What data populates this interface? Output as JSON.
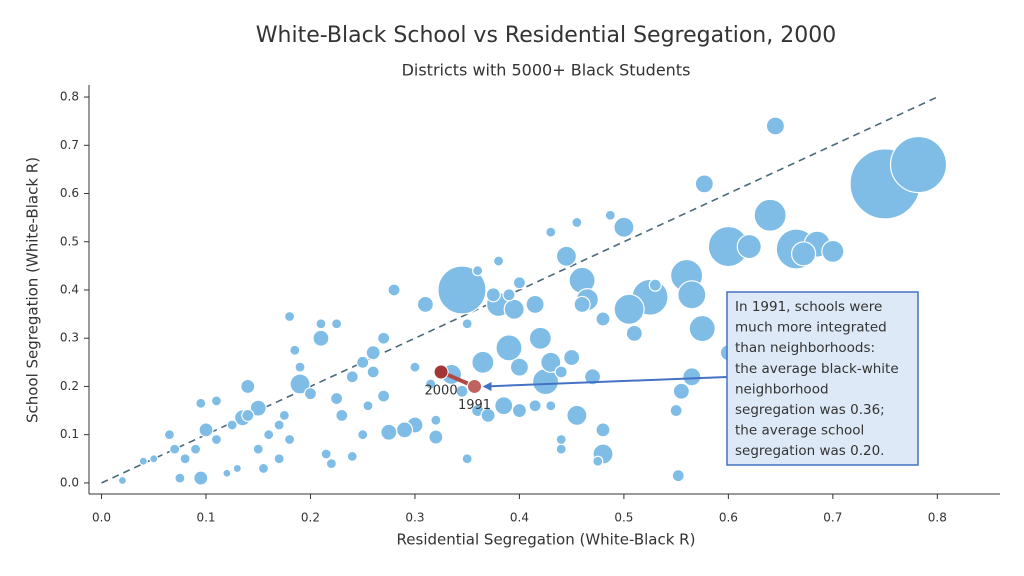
{
  "chart_data": {
    "type": "bubble",
    "title": "White-Black School vs Residential Segregation, 2000",
    "subtitle": "Districts with 5000+ Black Students",
    "x_label": "Residential Segregation (White-Black R)",
    "y_label": "School Segregation (White-Black R)",
    "xlim": [
      -0.012,
      0.86
    ],
    "ylim": [
      -0.023,
      0.825
    ],
    "xticks": [
      {
        "value": 0,
        "label": "0.0"
      },
      0.1,
      0.2,
      0.3,
      0.4,
      0.5,
      0.6,
      0.7,
      0.8
    ],
    "yticks": [
      {
        "value": 0,
        "label": "0.0"
      },
      0.1,
      0.2,
      0.3,
      0.4,
      0.5,
      0.6,
      0.7,
      0.8
    ],
    "color": "#7fbde6",
    "x": [
      0.75,
      0.782,
      0.345,
      0.6,
      0.665,
      0.525,
      0.64,
      0.56,
      0.565,
      0.505,
      0.685,
      0.62,
      0.7,
      0.672,
      0.575,
      0.46,
      0.465,
      0.39,
      0.365,
      0.38,
      0.395,
      0.42,
      0.425,
      0.43,
      0.445,
      0.335,
      0.455,
      0.48,
      0.5,
      0.577,
      0.645,
      0.6,
      0.565,
      0.555,
      0.51,
      0.47,
      0.415,
      0.4,
      0.385,
      0.375,
      0.19,
      0.21,
      0.15,
      0.135,
      0.14,
      0.28,
      0.31,
      0.3,
      0.32,
      0.29,
      0.275,
      0.1,
      0.095,
      0.48,
      0.455,
      0.487,
      0.43,
      0.38,
      0.36,
      0.39,
      0.4,
      0.35,
      0.345,
      0.36,
      0.37,
      0.4,
      0.415,
      0.35,
      0.44,
      0.44,
      0.475,
      0.552,
      0.25,
      0.26,
      0.27,
      0.26,
      0.24,
      0.225,
      0.23,
      0.215,
      0.22,
      0.225,
      0.21,
      0.18,
      0.185,
      0.19,
      0.2,
      0.175,
      0.18,
      0.17,
      0.155,
      0.16,
      0.13,
      0.12,
      0.11,
      0.095,
      0.09,
      0.08,
      0.07,
      0.065,
      0.05,
      0.04,
      0.02,
      0.075,
      0.125,
      0.11,
      0.14,
      0.15,
      0.17,
      0.25,
      0.24,
      0.27,
      0.255,
      0.3,
      0.315,
      0.32,
      0.53,
      0.48,
      0.46,
      0.45,
      0.44,
      0.43,
      0.55
    ],
    "y": [
      0.62,
      0.66,
      0.4,
      0.49,
      0.485,
      0.385,
      0.555,
      0.43,
      0.39,
      0.36,
      0.495,
      0.49,
      0.48,
      0.475,
      0.32,
      0.42,
      0.38,
      0.28,
      0.25,
      0.37,
      0.36,
      0.3,
      0.21,
      0.25,
      0.47,
      0.225,
      0.14,
      0.06,
      0.53,
      0.62,
      0.74,
      0.27,
      0.22,
      0.19,
      0.31,
      0.22,
      0.37,
      0.24,
      0.16,
      0.39,
      0.205,
      0.3,
      0.155,
      0.135,
      0.2,
      0.4,
      0.37,
      0.12,
      0.095,
      0.11,
      0.105,
      0.11,
      0.01,
      0.11,
      0.54,
      0.555,
      0.52,
      0.46,
      0.44,
      0.39,
      0.415,
      0.33,
      0.19,
      0.15,
      0.14,
      0.15,
      0.16,
      0.05,
      0.07,
      0.09,
      0.045,
      0.015,
      0.25,
      0.23,
      0.3,
      0.27,
      0.22,
      0.175,
      0.14,
      0.06,
      0.04,
      0.33,
      0.33,
      0.345,
      0.275,
      0.24,
      0.185,
      0.14,
      0.09,
      0.05,
      0.03,
      0.1,
      0.03,
      0.02,
      0.17,
      0.165,
      0.07,
      0.05,
      0.07,
      0.1,
      0.05,
      0.045,
      0.005,
      0.01,
      0.12,
      0.09,
      0.14,
      0.07,
      0.12,
      0.1,
      0.055,
      0.18,
      0.16,
      0.24,
      0.205,
      0.13,
      0.41,
      0.34,
      0.37,
      0.26,
      0.23,
      0.16,
      0.15
    ],
    "sizes": [
      35,
      28,
      24,
      20,
      20,
      18,
      16,
      16,
      14,
      15,
      13,
      12,
      11,
      12,
      13,
      13,
      11,
      13,
      11,
      12,
      10,
      11,
      13,
      10,
      10,
      10,
      10,
      10,
      10,
      9,
      9,
      8,
      9,
      8,
      8,
      8,
      9,
      9,
      9,
      7,
      10,
      8,
      8,
      8,
      7,
      6,
      8,
      8,
      7,
      8,
      8,
      7,
      7,
      7,
      5,
      5,
      5,
      5,
      5,
      6,
      6,
      5,
      6,
      6,
      7,
      7,
      6,
      5,
      5,
      5,
      5,
      6,
      6,
      6,
      6,
      7,
      6,
      6,
      6,
      5,
      5,
      5,
      5,
      5,
      5,
      5,
      6,
      5,
      5,
      5,
      5,
      5,
      4,
      4,
      5,
      5,
      5,
      5,
      5,
      5,
      4,
      4,
      4,
      5,
      5,
      5,
      6,
      5,
      5,
      5,
      5,
      6,
      5,
      5,
      5,
      5,
      6,
      7,
      8,
      8,
      6,
      5,
      6
    ],
    "highlight": {
      "x": [
        0.325,
        0.357
      ],
      "y": [
        0.23,
        0.2
      ],
      "labels": [
        "2000",
        "1991"
      ],
      "colors": [
        "#a23535",
        "#c0625d"
      ]
    },
    "annotation": [
      "In 1991, schools were",
      "much more integrated",
      "than neighborhoods:",
      "the average black-white",
      "neighborhood",
      "segregation was 0.36;",
      "the average school",
      "segregation was 0.20."
    ]
  }
}
